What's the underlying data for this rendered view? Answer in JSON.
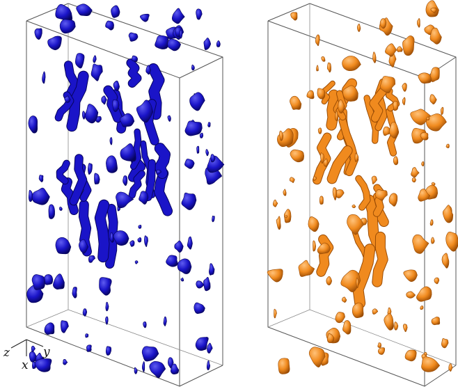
{
  "figure": {
    "panels": [
      {
        "id": "left",
        "iso_color": "#1a14c8",
        "shade_color": "#07045e",
        "highlight_color": "#5f5cf0"
      },
      {
        "id": "right",
        "iso_color": "#f08a1e",
        "shade_color": "#9a4c05",
        "highlight_color": "#ffc27a"
      }
    ],
    "axes_triad": {
      "labels": {
        "z": "z",
        "x": "x",
        "y": "y"
      }
    }
  }
}
